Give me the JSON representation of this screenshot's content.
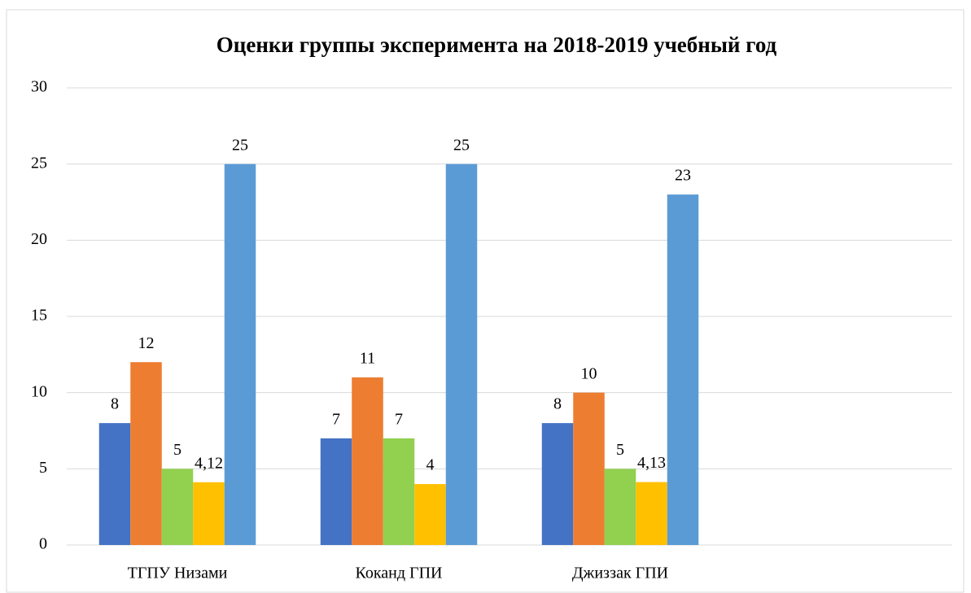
{
  "chart_data": {
    "type": "bar",
    "title": "Оценки группы эксперимента на 2018-2019 учебный год",
    "categories": [
      "ТГПУ Низами",
      "Коканд ГПИ",
      "Джиззак ГПИ",
      null
    ],
    "series": [
      {
        "color": "#4472c4",
        "values": [
          8,
          7,
          8,
          null
        ]
      },
      {
        "color": "#ed7d31",
        "values": [
          12,
          11,
          10,
          null
        ]
      },
      {
        "color": "#92d050",
        "values": [
          5,
          7,
          5,
          null
        ]
      },
      {
        "color": "#ffc000",
        "values": [
          4.12,
          4,
          4.13,
          null
        ],
        "value_labels": [
          "4,12",
          "4",
          "4,13",
          null
        ]
      },
      {
        "color": "#5b9bd5",
        "values": [
          25,
          25,
          23,
          null
        ]
      }
    ],
    "ylim": [
      0,
      30
    ],
    "yticks": [
      0,
      5,
      10,
      15,
      20,
      25,
      30
    ],
    "grid": true
  }
}
